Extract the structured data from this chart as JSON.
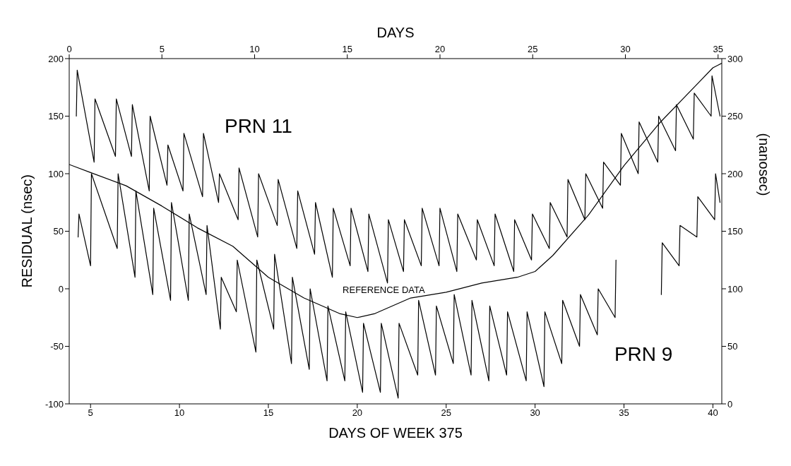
{
  "chart_data": {
    "type": "line",
    "xlabel": "DAYS OF WEEK 375",
    "x2label": "DAYS",
    "ylabel": "RESIDUAL (nsec)",
    "y2label": "(nanosec)",
    "xlim": [
      3.8,
      40.5
    ],
    "xticks": [
      5,
      10,
      15,
      20,
      25,
      30,
      35,
      40
    ],
    "x2lim": [
      0,
      35.2
    ],
    "x2ticks": [
      0,
      5,
      10,
      15,
      20,
      25,
      30,
      35
    ],
    "ylim": [
      -100,
      200
    ],
    "yticks": [
      -100,
      -50,
      0,
      50,
      100,
      150,
      200
    ],
    "y2lim": [
      0,
      300
    ],
    "y2ticks": [
      0,
      50,
      100,
      150,
      200,
      250,
      300
    ],
    "grid": false,
    "legend": false,
    "marker": "none",
    "line_style": "solid",
    "series": [
      {
        "color": "#000000",
        "x": [
          4.2,
          4.25,
          5.2,
          5.25,
          6.4,
          6.45,
          7.3,
          7.35,
          8.3,
          8.35,
          9.3,
          9.35,
          10.2,
          10.25,
          11.3,
          11.35,
          12.2,
          12.25,
          13.3,
          13.35,
          14.4,
          14.45,
          15.5,
          15.55,
          16.6,
          16.65,
          17.6,
          17.65,
          18.6,
          18.65,
          19.6,
          19.65,
          20.6,
          20.65,
          21.7,
          21.75,
          22.6,
          22.65,
          23.6,
          23.65,
          24.6,
          24.65,
          25.6,
          25.65,
          26.7,
          26.75,
          27.7,
          27.75,
          28.8,
          28.85,
          29.8,
          29.85,
          30.8,
          30.85,
          31.8,
          31.85,
          32.8,
          32.85,
          33.8,
          33.85,
          34.8,
          34.85,
          35.8,
          35.85,
          36.9,
          36.95,
          37.9,
          37.95,
          38.9,
          38.95,
          39.9,
          39.95,
          40.4
        ],
        "values": [
          150,
          190,
          110,
          165,
          115,
          165,
          115,
          160,
          85,
          150,
          90,
          125,
          85,
          135,
          80,
          135,
          75,
          100,
          60,
          105,
          45,
          100,
          55,
          95,
          35,
          85,
          30,
          75,
          10,
          70,
          20,
          70,
          15,
          65,
          5,
          60,
          15,
          60,
          20,
          70,
          20,
          70,
          15,
          65,
          25,
          60,
          20,
          65,
          15,
          60,
          25,
          65,
          35,
          75,
          45,
          95,
          60,
          100,
          70,
          110,
          90,
          135,
          100,
          145,
          110,
          150,
          120,
          160,
          130,
          170,
          150,
          185,
          150
        ]
      },
      {
        "color": "#000000",
        "x": [
          4.3,
          4.35,
          5.0,
          5.05,
          6.5,
          6.55,
          7.5,
          7.55,
          8.5,
          8.55,
          9.5,
          9.55,
          10.5,
          10.55,
          11.5,
          11.55,
          12.3,
          12.35,
          13.2,
          13.25,
          14.3,
          14.35,
          15.3,
          15.35,
          16.3,
          16.35,
          17.3,
          17.35,
          18.3,
          18.35,
          19.3,
          19.35,
          20.3,
          20.35,
          21.3,
          21.35,
          22.3,
          22.35,
          23.4,
          23.45,
          24.4,
          24.45,
          25.4,
          25.45,
          26.4,
          26.45,
          27.4,
          27.45,
          28.4,
          28.45,
          29.5,
          29.55,
          30.5,
          30.55,
          31.5,
          31.55,
          32.5,
          32.55,
          33.5,
          33.55,
          34.5,
          34.55,
          35.9,
          37.1,
          37.15,
          38.1,
          38.15,
          39.1,
          39.15,
          40.1,
          40.15,
          40.4
        ],
        "values": [
          45,
          65,
          20,
          100,
          35,
          100,
          10,
          85,
          -5,
          70,
          -10,
          75,
          -10,
          65,
          -5,
          55,
          -35,
          10,
          -20,
          25,
          -55,
          25,
          -35,
          30,
          -65,
          10,
          -70,
          0,
          -80,
          -15,
          -80,
          -20,
          -90,
          -30,
          -90,
          -30,
          -95,
          -30,
          -75,
          -10,
          -75,
          -15,
          -65,
          -5,
          -75,
          -10,
          -80,
          -15,
          -75,
          -20,
          -80,
          -20,
          -85,
          -20,
          -65,
          -10,
          -50,
          -5,
          -40,
          0,
          -25,
          25,
          null,
          -5,
          40,
          20,
          55,
          45,
          80,
          60,
          100,
          75
        ]
      },
      {
        "color": "#000000",
        "axis": "y2",
        "x": [
          3.8,
          5,
          7,
          9,
          11,
          13,
          15,
          17,
          19,
          20,
          21,
          23,
          25,
          27,
          29,
          30,
          31,
          33,
          35,
          37,
          39,
          40,
          40.5
        ],
        "values": [
          208,
          201,
          189.5,
          172,
          153,
          137,
          110,
          92,
          78.5,
          75,
          78.5,
          92,
          97,
          105,
          110,
          115,
          129,
          164,
          207,
          244,
          276,
          292,
          296
        ]
      }
    ],
    "annotations": [
      "PRN 11",
      "PRN 9",
      "REFERENCE DATA"
    ]
  }
}
